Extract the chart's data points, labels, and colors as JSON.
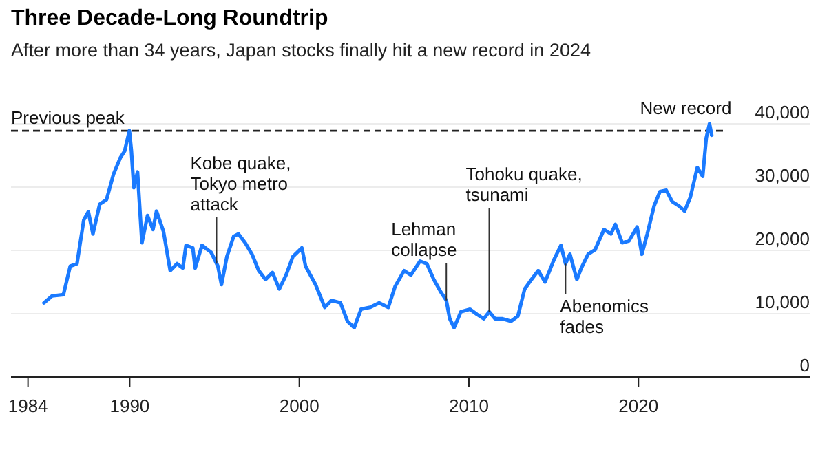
{
  "chart_data": {
    "type": "line",
    "title": "Three Decade-Long Roundtrip",
    "subtitle": "After more than 34 years, Japan stocks finally hit a new record in 2024",
    "x": [
      1984.94,
      1985.42,
      1986.09,
      1986.49,
      1986.89,
      1987.29,
      1987.56,
      1987.83,
      1988.23,
      1988.63,
      1989.04,
      1989.44,
      1989.7,
      1989.98,
      1990.1,
      1990.24,
      1990.46,
      1990.72,
      1991.05,
      1991.37,
      1991.58,
      1991.99,
      1992.39,
      1992.79,
      1993.13,
      1993.32,
      1993.72,
      1993.86,
      1994.26,
      1994.8,
      1995.2,
      1995.41,
      1995.73,
      1996.13,
      1996.41,
      1996.81,
      1997.21,
      1997.61,
      1998.01,
      1998.42,
      1998.82,
      1999.22,
      1999.62,
      2000.15,
      2000.37,
      2000.96,
      2001.5,
      2001.9,
      2002.43,
      2002.84,
      2003.24,
      2003.64,
      2004.17,
      2004.71,
      2005.25,
      2005.65,
      2006.18,
      2006.58,
      2007.12,
      2007.52,
      2007.93,
      2008.33,
      2008.67,
      2008.87,
      2009.13,
      2009.53,
      2010.07,
      2010.47,
      2010.88,
      2011.2,
      2011.54,
      2011.95,
      2012.48,
      2012.89,
      2013.29,
      2013.69,
      2014.09,
      2014.49,
      2015.03,
      2015.43,
      2015.7,
      2015.96,
      2016.37,
      2016.63,
      2017.03,
      2017.44,
      2017.97,
      2018.38,
      2018.64,
      2019.04,
      2019.44,
      2019.92,
      2020.2,
      2020.52,
      2020.92,
      2021.27,
      2021.64,
      2021.99,
      2022.4,
      2022.72,
      2023.06,
      2023.47,
      2023.79,
      2024.0,
      2024.19,
      2024.32
    ],
    "series": [
      {
        "color": "#1a7aff",
        "values": [
          11700,
          12800,
          13000,
          17500,
          17900,
          24800,
          26100,
          22600,
          27300,
          28000,
          32000,
          34600,
          35700,
          38900,
          35700,
          29900,
          32400,
          21200,
          25500,
          23300,
          26200,
          23000,
          16800,
          17900,
          17200,
          20800,
          20400,
          17200,
          20800,
          19700,
          17500,
          14600,
          19000,
          22200,
          22600,
          21200,
          19400,
          16800,
          15400,
          16500,
          13900,
          16100,
          19000,
          20400,
          17500,
          14600,
          11000,
          12100,
          11700,
          8800,
          7800,
          10700,
          11000,
          11700,
          11000,
          14300,
          16800,
          16100,
          18300,
          17900,
          15400,
          13500,
          12100,
          9200,
          7800,
          10300,
          10700,
          9900,
          9200,
          10300,
          9200,
          9200,
          8800,
          9600,
          13900,
          15400,
          16800,
          15000,
          18600,
          20800,
          17900,
          19400,
          15400,
          17200,
          19400,
          20100,
          23300,
          22600,
          24100,
          21200,
          21500,
          23700,
          19400,
          22600,
          27000,
          29300,
          29500,
          27700,
          27000,
          26200,
          28400,
          33100,
          31700,
          37800,
          40000,
          38200
        ]
      }
    ],
    "xlim": [
      1983,
      2030.1
    ],
    "xticks": [
      1984,
      1990,
      2000,
      2010,
      2020
    ],
    "ylim": [
      0,
      40000
    ],
    "yticks": [
      0,
      {
        "value": 10000,
        "label": "10,000"
      },
      {
        "value": 20000,
        "label": "20,000"
      },
      {
        "value": 30000,
        "label": "30,000"
      },
      {
        "value": 40000,
        "label": "40,000"
      }
    ],
    "grid": "y",
    "ref_lines": [
      {
        "axis": "y",
        "value": 38900,
        "label": "Previous peak",
        "line_style": "dashed",
        "color": "#222222"
      }
    ],
    "annotations": [
      {
        "text": "Kobe quake, Tokyo metro attack",
        "x": 1995.12,
        "y": 17900
      },
      {
        "text": "Lehman collapse",
        "x": 2008.67,
        "y": 12100
      },
      {
        "text": "Tohoku quake, tsunami",
        "x": 2011.2,
        "y": 10300
      },
      {
        "text": "Abenomics fades",
        "x": 2015.7,
        "y": 17900
      },
      {
        "text": "New record",
        "x": 2024.19,
        "y": 40000
      }
    ]
  }
}
